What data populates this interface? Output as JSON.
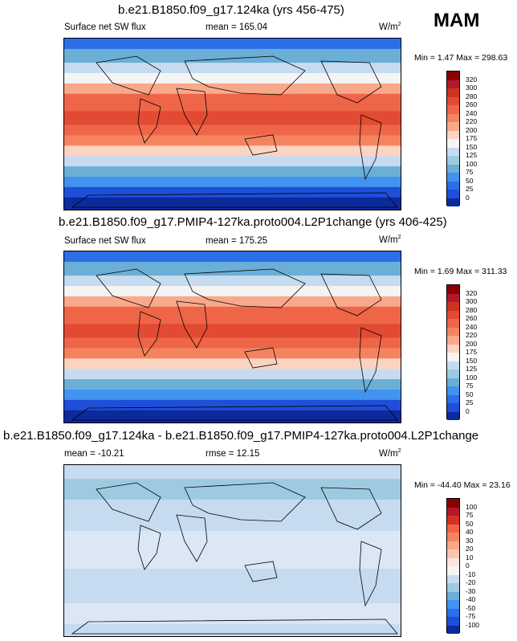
{
  "season": "MAM",
  "panels": [
    {
      "title": "b.e21.B1850.f09_g17.124ka (yrs 456-475)",
      "left": "Surface net SW flux",
      "center": "mean = 165.04",
      "units": "W/m",
      "units_sup": "2",
      "minmax": "Min =   1.47 Max = 298.63",
      "colorbar": {
        "labels": [
          "320",
          "300",
          "280",
          "260",
          "240",
          "220",
          "200",
          "175",
          "150",
          "125",
          "100",
          "75",
          "50",
          "25",
          "0"
        ],
        "colors": [
          "#8b0000",
          "#b2182b",
          "#cf3320",
          "#e34a33",
          "#ef6548",
          "#f4845f",
          "#f9a98b",
          "#fcd3c1",
          "#f4f4f4",
          "#c6dbef",
          "#9ecae1",
          "#6baed6",
          "#4292f0",
          "#2a6ee8",
          "#1f4fd8",
          "#0b2a9c"
        ]
      }
    },
    {
      "title": "b.e21.B1850.f09_g17.PMIP4-127ka.proto004.L2P1change (yrs 406-425)",
      "left": "Surface net SW flux",
      "center": "mean = 175.25",
      "units": "W/m",
      "units_sup": "2",
      "minmax": "Min =   1.69 Max = 311.33",
      "colorbar": {
        "labels": [
          "320",
          "300",
          "280",
          "260",
          "240",
          "220",
          "200",
          "175",
          "150",
          "125",
          "100",
          "75",
          "50",
          "25",
          "0"
        ],
        "colors": [
          "#8b0000",
          "#b2182b",
          "#cf3320",
          "#e34a33",
          "#ef6548",
          "#f4845f",
          "#f9a98b",
          "#fcd3c1",
          "#f4f4f4",
          "#c6dbef",
          "#9ecae1",
          "#6baed6",
          "#4292f0",
          "#2a6ee8",
          "#1f4fd8",
          "#0b2a9c"
        ]
      }
    },
    {
      "title": "b.e21.B1850.f09_g17.124ka - b.e21.B1850.f09_g17.PMIP4-127ka.proto004.L2P1change",
      "left": "mean = -10.21",
      "center": "rmse =  12.15",
      "units": "W/m",
      "units_sup": "2",
      "minmax": "Min = -44.40 Max =  23.16",
      "colorbar": {
        "labels": [
          "100",
          "75",
          "50",
          "40",
          "30",
          "20",
          "10",
          "0",
          "-10",
          "-20",
          "-30",
          "-40",
          "-50",
          "-75",
          "-100"
        ],
        "colors": [
          "#8b0000",
          "#b2182b",
          "#d7301f",
          "#ef6548",
          "#f4845f",
          "#f9a98b",
          "#fcc5b0",
          "#fde6dc",
          "#f4f4f4",
          "#c6dbef",
          "#9ecae1",
          "#6baed6",
          "#4292f0",
          "#2a6ee8",
          "#1f4fd8",
          "#0b2a9c"
        ]
      }
    }
  ]
}
